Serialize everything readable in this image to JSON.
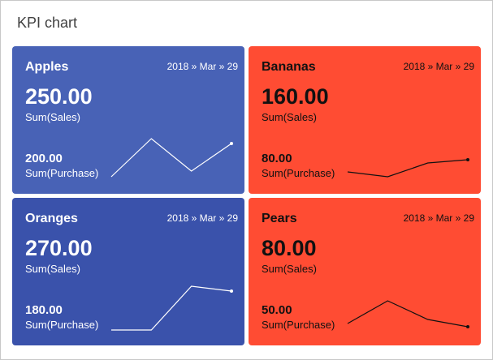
{
  "header": {
    "title": "KPI chart"
  },
  "trend_ylim": [
    0,
    60
  ],
  "cards": [
    {
      "name": "Apples",
      "date": "2018 » Mar » 29",
      "value": "250.00",
      "value_label": "Sum(Sales)",
      "purchase": "200.00",
      "purchase_label": "Sum(Purchase)",
      "color": "#4862b6",
      "text_color": "#ffffff",
      "trend": [
        4,
        51,
        11,
        45
      ]
    },
    {
      "name": "Bananas",
      "date": "2018 » Mar » 29",
      "value": "160.00",
      "value_label": "Sum(Sales)",
      "purchase": "80.00",
      "purchase_label": "Sum(Purchase)",
      "color": "#ff4c33",
      "text_color": "#111111",
      "trend": [
        10,
        4,
        21,
        25
      ]
    },
    {
      "name": "Oranges",
      "date": "2018 » Mar » 29",
      "value": "270.00",
      "value_label": "Sum(Sales)",
      "purchase": "180.00",
      "purchase_label": "Sum(Purchase)",
      "color": "#3a52ab",
      "text_color": "#ffffff",
      "trend": [
        2,
        2,
        56,
        50
      ]
    },
    {
      "name": "Pears",
      "date": "2018 » Mar » 29",
      "value": "80.00",
      "value_label": "Sum(Sales)",
      "purchase": "50.00",
      "purchase_label": "Sum(Purchase)",
      "color": "#ff4c33",
      "text_color": "#111111",
      "trend": [
        10,
        38,
        15,
        6
      ]
    }
  ]
}
